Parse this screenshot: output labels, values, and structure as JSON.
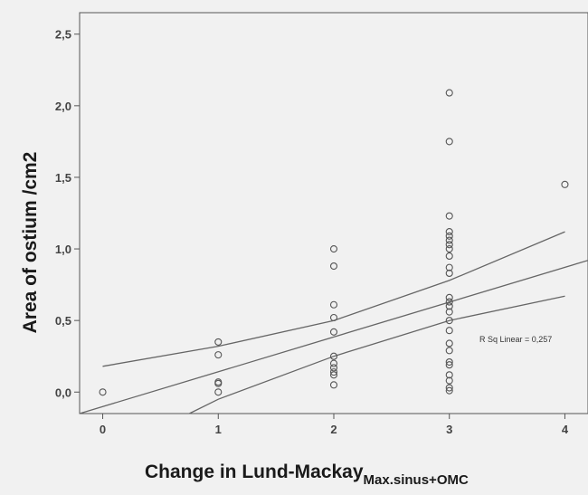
{
  "chart_data": {
    "type": "scatter",
    "xlabel_main": "Change in Lund-Mackay",
    "xlabel_sub": "Max.sinus+OMC",
    "ylabel": "Area of ostium /cm2",
    "xlim": [
      -0.2,
      4.2
    ],
    "ylim": [
      -0.15,
      2.65
    ],
    "x_ticks": [
      0,
      1,
      2,
      3,
      4
    ],
    "x_tick_labels": [
      "0",
      "1",
      "2",
      "3",
      "4"
    ],
    "y_ticks": [
      0.0,
      0.5,
      1.0,
      1.5,
      2.0,
      2.5
    ],
    "y_tick_labels": [
      "0,0",
      "0,5",
      "1,0",
      "1,5",
      "2,0",
      "2,5"
    ],
    "grid": false,
    "points": [
      {
        "x": 0,
        "y": 0.0
      },
      {
        "x": 1,
        "y": 0.35
      },
      {
        "x": 1,
        "y": 0.26
      },
      {
        "x": 1,
        "y": 0.07
      },
      {
        "x": 1,
        "y": 0.06
      },
      {
        "x": 1,
        "y": 0.0
      },
      {
        "x": 2,
        "y": 1.0
      },
      {
        "x": 2,
        "y": 0.88
      },
      {
        "x": 2,
        "y": 0.61
      },
      {
        "x": 2,
        "y": 0.52
      },
      {
        "x": 2,
        "y": 0.42
      },
      {
        "x": 2,
        "y": 0.25
      },
      {
        "x": 2,
        "y": 0.2
      },
      {
        "x": 2,
        "y": 0.17
      },
      {
        "x": 2,
        "y": 0.14
      },
      {
        "x": 2,
        "y": 0.12
      },
      {
        "x": 2,
        "y": 0.05
      },
      {
        "x": 3,
        "y": 2.09
      },
      {
        "x": 3,
        "y": 1.75
      },
      {
        "x": 3,
        "y": 1.23
      },
      {
        "x": 3,
        "y": 1.12
      },
      {
        "x": 3,
        "y": 1.09
      },
      {
        "x": 3,
        "y": 1.06
      },
      {
        "x": 3,
        "y": 1.03
      },
      {
        "x": 3,
        "y": 1.0
      },
      {
        "x": 3,
        "y": 0.95
      },
      {
        "x": 3,
        "y": 0.87
      },
      {
        "x": 3,
        "y": 0.83
      },
      {
        "x": 3,
        "y": 0.66
      },
      {
        "x": 3,
        "y": 0.63
      },
      {
        "x": 3,
        "y": 0.6
      },
      {
        "x": 3,
        "y": 0.56
      },
      {
        "x": 3,
        "y": 0.5
      },
      {
        "x": 3,
        "y": 0.43
      },
      {
        "x": 3,
        "y": 0.34
      },
      {
        "x": 3,
        "y": 0.29
      },
      {
        "x": 3,
        "y": 0.21
      },
      {
        "x": 3,
        "y": 0.19
      },
      {
        "x": 3,
        "y": 0.12
      },
      {
        "x": 3,
        "y": 0.08
      },
      {
        "x": 3,
        "y": 0.03
      },
      {
        "x": 3,
        "y": 0.01
      },
      {
        "x": 4,
        "y": 1.45
      }
    ],
    "fit_line": {
      "x": [
        -0.2,
        4.2
      ],
      "y": [
        -0.22,
        0.92
      ]
    },
    "ci_upper": {
      "x": [
        0,
        1,
        2,
        3,
        4
      ],
      "y": [
        0.18,
        0.32,
        0.5,
        0.78,
        1.12
      ]
    },
    "ci_lower": {
      "x": [
        0.75,
        1,
        2,
        3,
        4
      ],
      "y": [
        -0.15,
        -0.05,
        0.25,
        0.5,
        0.67
      ]
    },
    "annotation": "R Sq Linear = 0,257"
  }
}
